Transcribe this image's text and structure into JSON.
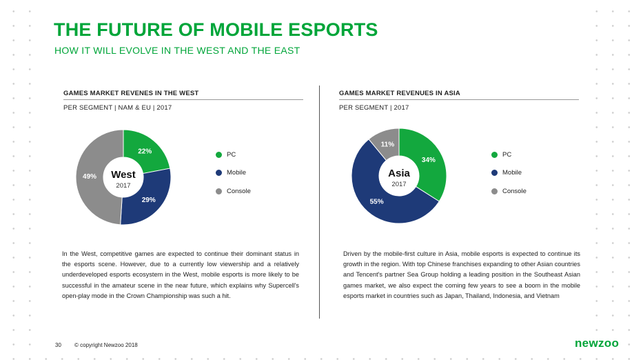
{
  "header": {
    "title": "THE FUTURE OF MOBILE ESPORTS",
    "subtitle": "HOW IT WILL EVOLVE IN THE WEST AND THE EAST"
  },
  "colors": {
    "accent": "#00a539",
    "pc": "#13a83e",
    "mobile": "#1e3a78",
    "console": "#8c8c8c"
  },
  "charts": [
    {
      "title": "GAMES MARKET REVENES IN THE WEST",
      "subtitle": "PER SEGMENT | NAM & EU | 2017",
      "center_label": "West",
      "center_year": "2017",
      "body": "In the West, competitive games are expected to continue their dominant status in the esports scene. However, due to a currently low viewership and a relatively underdeveloped esports ecosystem in the West, mobile esports is more likely to be successful in the amateur scene in the near future, which explains why Supercell's open-play mode in the Crown Championship was such a hit."
    },
    {
      "title": "GAMES MARKET REVENUES IN ASIA",
      "subtitle": "PER SEGMENT | 2017",
      "center_label": "Asia",
      "center_year": "2017",
      "body": "Driven by the mobile-first culture in Asia, mobile esports is expected to continue its growth in the region. With top Chinese franchises expanding to other Asian countries and Tencent's partner Sea Group holding a leading position in the Southeast Asian games market, we also expect the coming few years to see a boom in the mobile esports market in countries such as Japan, Thailand, Indonesia, and Vietnam"
    }
  ],
  "chart_data": [
    {
      "type": "pie",
      "title": "GAMES MARKET REVENES IN THE WEST",
      "subtitle": "PER SEGMENT | NAM & EU | 2017",
      "categories": [
        "PC",
        "Mobile",
        "Console"
      ],
      "values": [
        22,
        29,
        49
      ],
      "labels": [
        "22%",
        "29%",
        "49%"
      ],
      "colors": [
        "#13a83e",
        "#1e3a78",
        "#8c8c8c"
      ],
      "legend": "right"
    },
    {
      "type": "pie",
      "title": "GAMES MARKET REVENUES IN ASIA",
      "subtitle": "PER SEGMENT | 2017",
      "categories": [
        "PC",
        "Mobile",
        "Console"
      ],
      "values": [
        34,
        55,
        11
      ],
      "labels": [
        "34%",
        "55%",
        "11%"
      ],
      "colors": [
        "#13a83e",
        "#1e3a78",
        "#8c8c8c"
      ],
      "legend": "right"
    }
  ],
  "footer": {
    "page_number": "30",
    "copyright": "© copyright Newzoo 2018",
    "brand": "newzoo"
  }
}
